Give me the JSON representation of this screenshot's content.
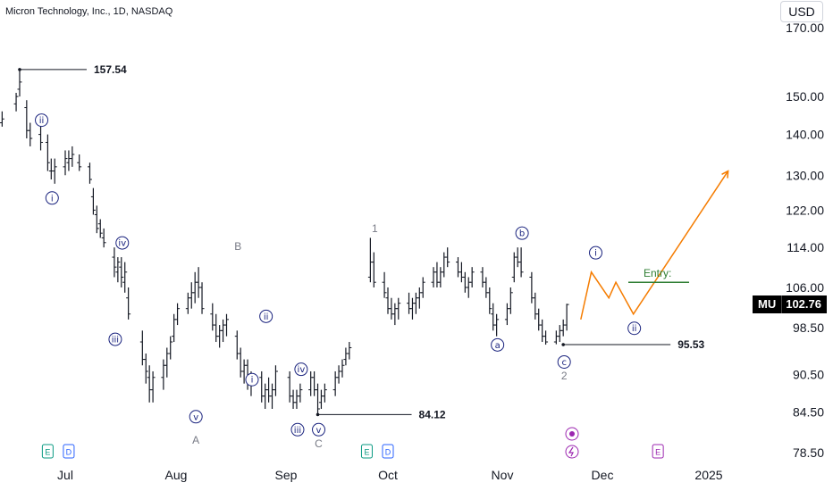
{
  "header": {
    "title": "Micron Technology, Inc., 1D, NASDAQ",
    "currency": "USD"
  },
  "ticker": {
    "symbol": "MU",
    "last_price": "102.76"
  },
  "chart_data": {
    "type": "candlestick",
    "title": "Micron Technology, Inc., 1D, NASDAQ",
    "y_axis": {
      "scale": "log",
      "ticks": [
        "170.00",
        "150.00",
        "140.00",
        "130.00",
        "122.00",
        "114.00",
        "106.00",
        "98.50",
        "90.50",
        "84.50",
        "78.50"
      ]
    },
    "x_axis": {
      "ticks": [
        "Jul",
        "Aug",
        "Sep",
        "Oct",
        "Nov",
        "Dec",
        "2025"
      ]
    },
    "grid": false,
    "colors": {
      "bar": "#131722",
      "projection": "#f57c00",
      "entry": "#2e7d32",
      "wave_label": "#1a237e",
      "corrective_label": "#787b86"
    },
    "price_labels": [
      {
        "text": "157.54",
        "date": "2024-06-18",
        "price": 157.54
      },
      {
        "text": "84.12",
        "date": "2024-09-11",
        "price": 84.12
      },
      {
        "text": "95.53",
        "date": "2024-11-20",
        "price": 95.53
      }
    ],
    "entry_label": "Entry:",
    "entry_price": 107,
    "wave_labels": [
      {
        "text": "ⅱ",
        "date": "2024-06-24",
        "price": 140,
        "place": "above"
      },
      {
        "text": "ⅰ",
        "date": "2024-06-27",
        "price": 128,
        "place": "below"
      },
      {
        "text": "ⅳ",
        "date": "2024-07-17",
        "price": 112,
        "place": "above"
      },
      {
        "text": "ⅲ",
        "date": "2024-07-15",
        "price": 99,
        "place": "below"
      },
      {
        "text": "ⅴ",
        "date": "2024-08-07",
        "price": 86,
        "place": "below"
      },
      {
        "text": "ⅱ",
        "date": "2024-08-27",
        "price": 98,
        "place": "above"
      },
      {
        "text": "ⅰ",
        "date": "2024-08-23",
        "price": 92,
        "place": "below"
      },
      {
        "text": "ⅳ",
        "date": "2024-09-06",
        "price": 89,
        "place": "above"
      },
      {
        "text": "ⅲ",
        "date": "2024-09-05",
        "price": 84,
        "place": "below"
      },
      {
        "text": "ⅴ",
        "date": "2024-09-11",
        "price": 84,
        "place": "below"
      },
      {
        "text": "ⓐ",
        "date": "2024-11-01",
        "price": 98,
        "place": "below"
      },
      {
        "text": "ⓑ",
        "date": "2024-11-08",
        "price": 114,
        "place": "above"
      },
      {
        "text": "ⓒ",
        "date": "2024-11-20",
        "price": 95,
        "place": "below"
      },
      {
        "text": "ⅰ",
        "date": "2024-11-29",
        "price": 110,
        "place": "above"
      },
      {
        "text": "ⅱ",
        "date": "2024-12-10",
        "price": 101,
        "place": "below"
      }
    ],
    "corrective_labels": [
      {
        "text": "A",
        "date": "2024-08-07"
      },
      {
        "text": "B",
        "date": "2024-08-19"
      },
      {
        "text": "C",
        "date": "2024-09-11"
      },
      {
        "text": "1",
        "date": "2024-09-27"
      },
      {
        "text": "2",
        "date": "2024-11-20"
      }
    ],
    "projection_path": [
      {
        "date": "2024-11-25",
        "price": 100
      },
      {
        "date": "2024-11-28",
        "price": 109
      },
      {
        "date": "2024-12-03",
        "price": 104
      },
      {
        "date": "2024-12-05",
        "price": 107
      },
      {
        "date": "2024-12-10",
        "price": 101
      },
      {
        "date": "2025-01-06",
        "price": 131
      }
    ],
    "event_markers": [
      {
        "text": "E",
        "date": "2024-06-26",
        "color": "#089981"
      },
      {
        "text": "D",
        "date": "2024-07-02",
        "color": "#2962ff"
      },
      {
        "text": "E",
        "date": "2024-09-25",
        "color": "#089981"
      },
      {
        "text": "D",
        "date": "2024-10-01",
        "color": "#2962ff"
      },
      {
        "text": "E",
        "date": "2024-12-17",
        "color": "#9c27b0"
      }
    ],
    "ohlc": [
      [
        "2024-06-10",
        133,
        134,
        130,
        131
      ],
      [
        "2024-06-13",
        143,
        146,
        142,
        144
      ],
      [
        "2024-06-17",
        148,
        151,
        146,
        150
      ],
      [
        "2024-06-18",
        152,
        157.54,
        150,
        154
      ],
      [
        "2024-06-20",
        147,
        149,
        139,
        141
      ],
      [
        "2024-06-21",
        141,
        143,
        137,
        139
      ],
      [
        "2024-06-24",
        140,
        143,
        136,
        138
      ],
      [
        "2024-06-26",
        138,
        140,
        131,
        133
      ],
      [
        "2024-06-27",
        131,
        134,
        129,
        131
      ],
      [
        "2024-06-28",
        131,
        134,
        128,
        132
      ],
      [
        "2024-07-01",
        132,
        136,
        130,
        134
      ],
      [
        "2024-07-02",
        133,
        136,
        131,
        134
      ],
      [
        "2024-07-03",
        134,
        137,
        132,
        135
      ],
      [
        "2024-07-05",
        133,
        135,
        131,
        132
      ],
      [
        "2024-07-08",
        132,
        133,
        128,
        129
      ],
      [
        "2024-07-09",
        125,
        127,
        121,
        122
      ],
      [
        "2024-07-10",
        121,
        123,
        117,
        118
      ],
      [
        "2024-07-11",
        119,
        120,
        116,
        117
      ],
      [
        "2024-07-12",
        116,
        118,
        114,
        115
      ],
      [
        "2024-07-15",
        112,
        114,
        108,
        110
      ],
      [
        "2024-07-16",
        109,
        112,
        107,
        111
      ],
      [
        "2024-07-17",
        110,
        112,
        106,
        108
      ],
      [
        "2024-07-18",
        107,
        111,
        105,
        109
      ],
      [
        "2024-07-19",
        104,
        106,
        100,
        101
      ],
      [
        "2024-07-23",
        96,
        98,
        92,
        93
      ],
      [
        "2024-07-24",
        93,
        94,
        89,
        91
      ],
      [
        "2024-07-25",
        90,
        92,
        86,
        88
      ],
      [
        "2024-07-26",
        88,
        91,
        86,
        90
      ],
      [
        "2024-07-29",
        90,
        93,
        88,
        92
      ],
      [
        "2024-07-30",
        92,
        95,
        90,
        94
      ],
      [
        "2024-07-31",
        94,
        97,
        93,
        96
      ],
      [
        "2024-08-01",
        97,
        101,
        96,
        100
      ],
      [
        "2024-08-02",
        100,
        103,
        99,
        102
      ],
      [
        "2024-08-05",
        102,
        105,
        101,
        104
      ],
      [
        "2024-08-06",
        104,
        107,
        102,
        105
      ],
      [
        "2024-08-07",
        105,
        109,
        103,
        107
      ],
      [
        "2024-08-08",
        107,
        110,
        104,
        106
      ],
      [
        "2024-08-09",
        106,
        107,
        101,
        102
      ],
      [
        "2024-08-12",
        101,
        103,
        98,
        99
      ],
      [
        "2024-08-13",
        99,
        101,
        96,
        97
      ],
      [
        "2024-08-14",
        97,
        99,
        95,
        98
      ],
      [
        "2024-08-15",
        98,
        100,
        96,
        99
      ],
      [
        "2024-08-16",
        99,
        101,
        97,
        100
      ],
      [
        "2024-08-19",
        97,
        98,
        93,
        94
      ],
      [
        "2024-08-20",
        94,
        95,
        90,
        91
      ],
      [
        "2024-08-21",
        91,
        93,
        89,
        92
      ],
      [
        "2024-08-22",
        92,
        93,
        88,
        89
      ],
      [
        "2024-08-23",
        89,
        91,
        87,
        90
      ],
      [
        "2024-08-26",
        90,
        91,
        86,
        87
      ],
      [
        "2024-08-27",
        87,
        89,
        85,
        88
      ],
      [
        "2024-08-28",
        88,
        90,
        86,
        87
      ],
      [
        "2024-08-29",
        87,
        89,
        85,
        88
      ],
      [
        "2024-08-30",
        88,
        92,
        87,
        91
      ],
      [
        "2024-09-03",
        90,
        91,
        86,
        87
      ],
      [
        "2024-09-04",
        87,
        88,
        85,
        86
      ],
      [
        "2024-09-05",
        86,
        88,
        85,
        87
      ],
      [
        "2024-09-06",
        87,
        89,
        86,
        88
      ],
      [
        "2024-09-09",
        88,
        91,
        87,
        90
      ],
      [
        "2024-09-10",
        90,
        91,
        87,
        88
      ],
      [
        "2024-09-11",
        88,
        89,
        84.12,
        85
      ],
      [
        "2024-09-12",
        86,
        88,
        85,
        87
      ],
      [
        "2024-09-13",
        87,
        89,
        86,
        88
      ],
      [
        "2024-09-16",
        88,
        91,
        87,
        90
      ],
      [
        "2024-09-17",
        90,
        92,
        89,
        91
      ],
      [
        "2024-09-18",
        91,
        93,
        90,
        92
      ],
      [
        "2024-09-19",
        93,
        95,
        92,
        94
      ],
      [
        "2024-09-20",
        94,
        96,
        93,
        95
      ],
      [
        "2024-09-26",
        108,
        116,
        107,
        111
      ],
      [
        "2024-09-27",
        111,
        113,
        106,
        107
      ],
      [
        "2024-09-30",
        107,
        109,
        104,
        105
      ],
      [
        "2024-10-01",
        104,
        106,
        101,
        102
      ],
      [
        "2024-10-02",
        102,
        104,
        100,
        101
      ],
      [
        "2024-10-03",
        101,
        103,
        99,
        102
      ],
      [
        "2024-10-04",
        102,
        104,
        100,
        103
      ],
      [
        "2024-10-07",
        103,
        105,
        101,
        102
      ],
      [
        "2024-10-08",
        102,
        104,
        100,
        103
      ],
      [
        "2024-10-09",
        103,
        105,
        101,
        104
      ],
      [
        "2024-10-10",
        104,
        106,
        102,
        105
      ],
      [
        "2024-10-11",
        105,
        108,
        104,
        107
      ],
      [
        "2024-10-14",
        107,
        110,
        106,
        109
      ],
      [
        "2024-10-15",
        109,
        111,
        106,
        107
      ],
      [
        "2024-10-16",
        107,
        110,
        106,
        109
      ],
      [
        "2024-10-17",
        109,
        113,
        108,
        112
      ],
      [
        "2024-10-18",
        112,
        114,
        110,
        111
      ],
      [
        "2024-10-21",
        111,
        112,
        108,
        109
      ],
      [
        "2024-10-22",
        109,
        111,
        107,
        108
      ],
      [
        "2024-10-23",
        108,
        109,
        105,
        106
      ],
      [
        "2024-10-24",
        106,
        108,
        104,
        107
      ],
      [
        "2024-10-25",
        107,
        110,
        106,
        109
      ],
      [
        "2024-10-28",
        109,
        110,
        106,
        107
      ],
      [
        "2024-10-29",
        107,
        108,
        104,
        105
      ],
      [
        "2024-10-30",
        105,
        106,
        101,
        102
      ],
      [
        "2024-10-31",
        101,
        103,
        98,
        99
      ],
      [
        "2024-11-01",
        99,
        101,
        97,
        100
      ],
      [
        "2024-11-04",
        100,
        103,
        99,
        102
      ],
      [
        "2024-11-05",
        102,
        106,
        101,
        105
      ],
      [
        "2024-11-06",
        108,
        113,
        107,
        112
      ],
      [
        "2024-11-07",
        112,
        114,
        110,
        111
      ],
      [
        "2024-11-08",
        111,
        114,
        108,
        109
      ],
      [
        "2024-11-11",
        108,
        109,
        103,
        104
      ],
      [
        "2024-11-12",
        104,
        105,
        100,
        101
      ],
      [
        "2024-11-13",
        101,
        102,
        98,
        99
      ],
      [
        "2024-11-14",
        99,
        100,
        96,
        97
      ],
      [
        "2024-11-15",
        97,
        98,
        95.53,
        96
      ],
      [
        "2024-11-18",
        96,
        98,
        95.6,
        97
      ],
      [
        "2024-11-19",
        97,
        99,
        96,
        98
      ],
      [
        "2024-11-20",
        98,
        100,
        97,
        99
      ],
      [
        "2024-11-21",
        99,
        102.9,
        98,
        102.76
      ]
    ]
  }
}
